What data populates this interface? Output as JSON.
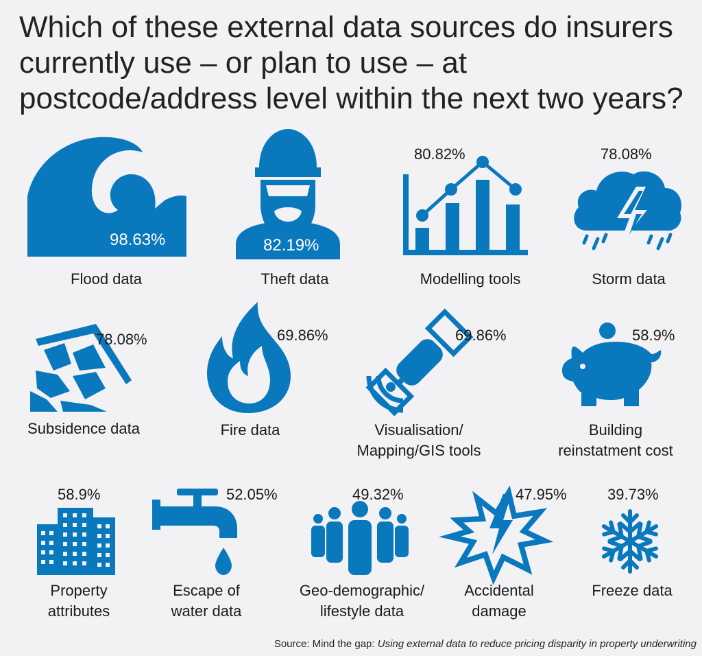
{
  "title": "Which of these external data sources do insurers currently use – or plan to use – at postcode/address level within the next two years?",
  "source_prefix": "Source: Mind the gap: ",
  "source_italic": "Using external data to reduce pricing disparity in property underwriting",
  "accent_color": "#0a78bd",
  "chart_data": {
    "type": "pictograph",
    "title": "Which of these external data sources do insurers currently use – or plan to use – at postcode/address level within the next two years?",
    "unit": "%",
    "items": [
      {
        "label": [
          "Flood data"
        ],
        "value": 98.63,
        "value_text": "98.63%",
        "icon": "wave-icon"
      },
      {
        "label": [
          "Theft data"
        ],
        "value": 82.19,
        "value_text": "82.19%",
        "icon": "burglar-icon"
      },
      {
        "label": [
          "Modelling tools"
        ],
        "value": 80.82,
        "value_text": "80.82%",
        "icon": "bar-line-chart-icon"
      },
      {
        "label": [
          "Storm data"
        ],
        "value": 78.08,
        "value_text": "78.08%",
        "icon": "storm-cloud-icon"
      },
      {
        "label": [
          "Subsidence data"
        ],
        "value": 78.08,
        "value_text": "78.08%",
        "icon": "collapsed-house-icon"
      },
      {
        "label": [
          "Fire data"
        ],
        "value": 69.86,
        "value_text": "69.86%",
        "icon": "flame-icon"
      },
      {
        "label": [
          "Visualisation/",
          "Mapping/GIS tools"
        ],
        "value": 69.86,
        "value_text": "69.86%",
        "icon": "satellite-icon"
      },
      {
        "label": [
          "Building",
          "reinstatment cost"
        ],
        "value": 58.9,
        "value_text": "58.9%",
        "icon": "piggy-bank-icon"
      },
      {
        "label": [
          "Property",
          "attributes"
        ],
        "value": 58.9,
        "value_text": "58.9%",
        "icon": "buildings-icon"
      },
      {
        "label": [
          "Escape of",
          "water data"
        ],
        "value": 52.05,
        "value_text": "52.05%",
        "icon": "tap-icon"
      },
      {
        "label": [
          "Geo-demographic/",
          "lifestyle data"
        ],
        "value": 49.32,
        "value_text": "49.32%",
        "icon": "people-group-icon"
      },
      {
        "label": [
          "Accidental",
          "damage"
        ],
        "value": 47.95,
        "value_text": "47.95%",
        "icon": "explosion-icon"
      },
      {
        "label": [
          "Freeze data"
        ],
        "value": 39.73,
        "value_text": "39.73%",
        "icon": "snowflake-icon"
      }
    ]
  }
}
